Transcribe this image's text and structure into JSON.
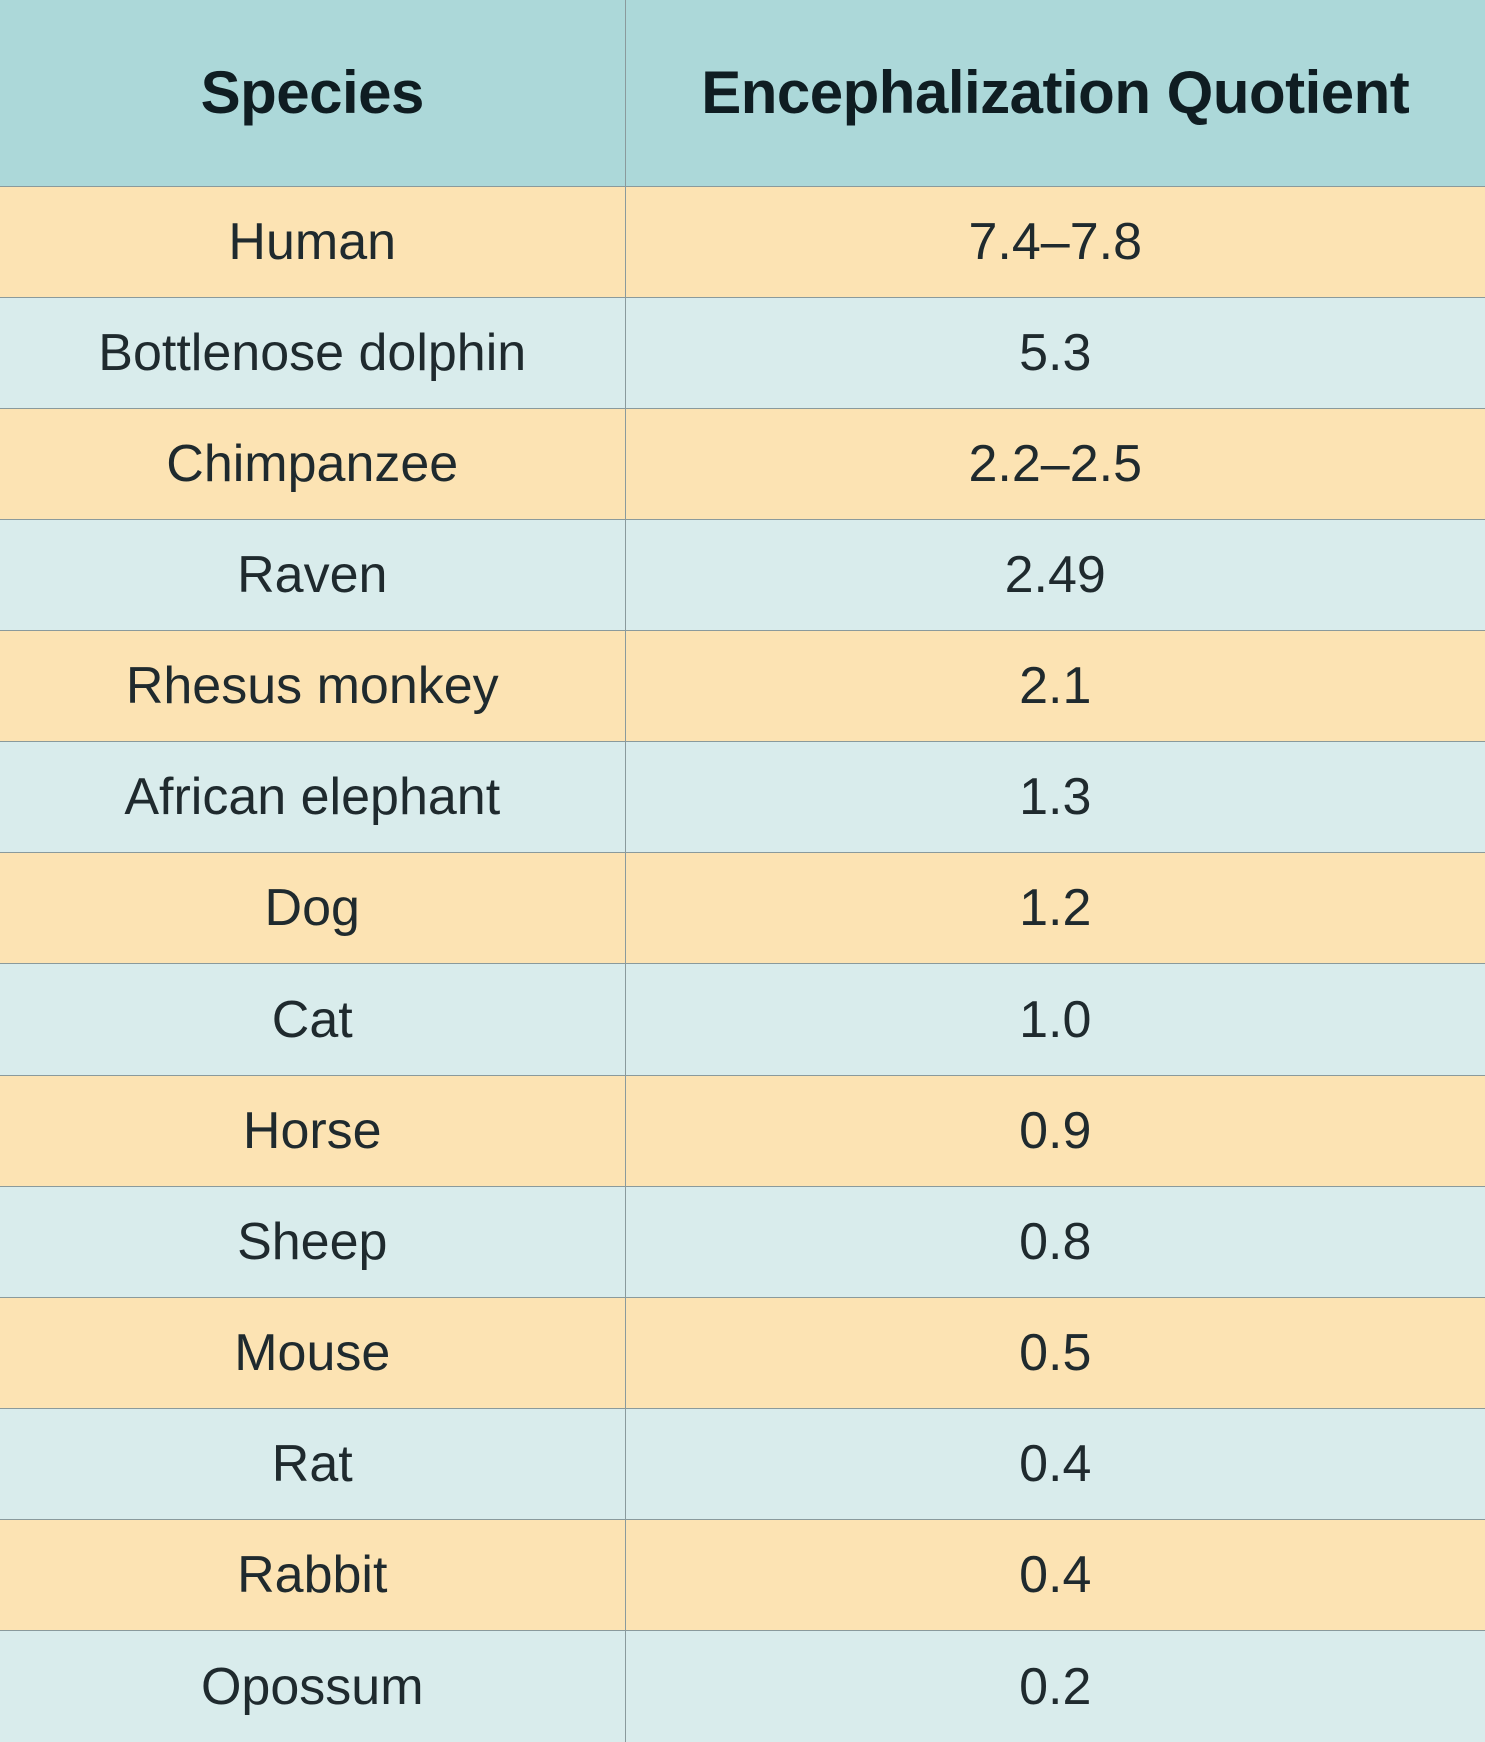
{
  "table": {
    "headers": {
      "species": "Species",
      "eq": "Encephalization Quotient"
    },
    "colors": {
      "header_bg": "#acd8d9",
      "row_odd_bg": "#fce3b3",
      "row_even_bg": "#d9ecec",
      "grid_line": "#8a9a9c"
    },
    "rows": [
      {
        "species": "Human",
        "eq": "7.4–7.8"
      },
      {
        "species": "Bottlenose dolphin",
        "eq": "5.3"
      },
      {
        "species": "Chimpanzee",
        "eq": "2.2–2.5"
      },
      {
        "species": "Raven",
        "eq": "2.49"
      },
      {
        "species": "Rhesus monkey",
        "eq": "2.1"
      },
      {
        "species": "African elephant",
        "eq": "1.3"
      },
      {
        "species": "Dog",
        "eq": "1.2"
      },
      {
        "species": "Cat",
        "eq": "1.0"
      },
      {
        "species": "Horse",
        "eq": "0.9"
      },
      {
        "species": "Sheep",
        "eq": "0.8"
      },
      {
        "species": "Mouse",
        "eq": "0.5"
      },
      {
        "species": "Rat",
        "eq": "0.4"
      },
      {
        "species": "Rabbit",
        "eq": "0.4"
      },
      {
        "species": "Opossum",
        "eq": "0.2"
      }
    ]
  }
}
